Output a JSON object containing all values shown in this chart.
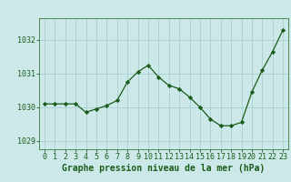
{
  "x": [
    0,
    1,
    2,
    3,
    4,
    5,
    6,
    7,
    8,
    9,
    10,
    11,
    12,
    13,
    14,
    15,
    16,
    17,
    18,
    19,
    20,
    21,
    22,
    23
  ],
  "y": [
    1030.1,
    1030.1,
    1030.1,
    1030.1,
    1029.85,
    1029.95,
    1030.05,
    1030.2,
    1030.75,
    1031.05,
    1031.25,
    1030.9,
    1030.65,
    1030.55,
    1030.3,
    1030.0,
    1029.65,
    1029.45,
    1029.45,
    1029.55,
    1030.45,
    1031.1,
    1031.65,
    1032.3
  ],
  "line_color": "#1a5c1a",
  "marker": "D",
  "marker_size": 2.2,
  "bg_color": "#cce8e8",
  "grid_color": "#aacfcf",
  "xlabel": "Graphe pression niveau de la mer (hPa)",
  "xlabel_color": "#1a5c1a",
  "tick_color": "#1a5c1a",
  "ylabel_ticks": [
    1029,
    1030,
    1031,
    1032
  ],
  "ylim": [
    1028.75,
    1032.65
  ],
  "xlim": [
    -0.5,
    23.5
  ],
  "font_size": 6.0,
  "xlabel_font_size": 7.0
}
